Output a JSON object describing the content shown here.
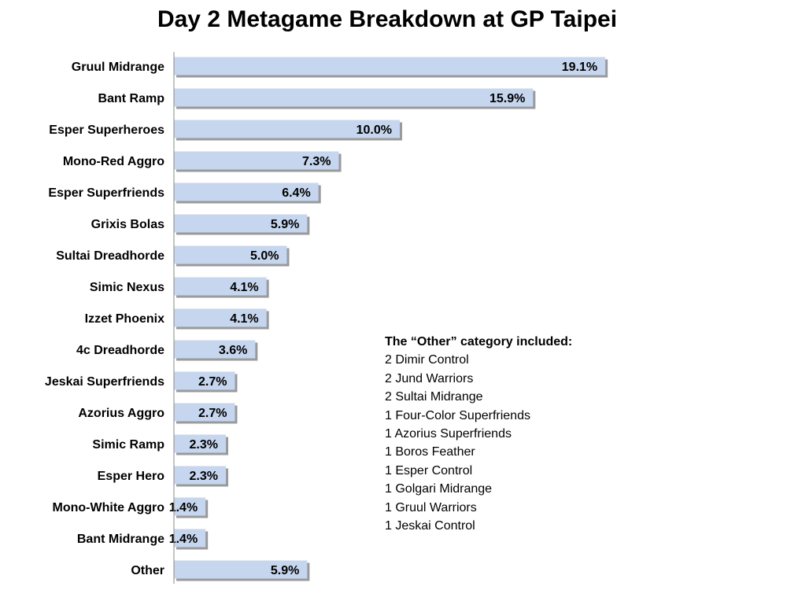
{
  "chart_data": {
    "type": "bar",
    "orientation": "horizontal",
    "title": "Day 2 Metagame Breakdown at GP Taipei",
    "xlabel": "",
    "ylabel": "",
    "xlim": [
      0,
      20
    ],
    "grid": false,
    "legend": "none",
    "categories": [
      "Gruul Midrange",
      "Bant Ramp",
      "Esper Superheroes",
      "Mono-Red Aggro",
      "Esper Superfriends",
      "Grixis Bolas",
      "Sultai Dreadhorde",
      "Simic Nexus",
      "Izzet Phoenix",
      "4c Dreadhorde",
      "Jeskai Superfriends",
      "Azorius Aggro",
      "Simic Ramp",
      "Esper Hero",
      "Mono-White Aggro",
      "Bant Midrange",
      "Other"
    ],
    "values": [
      19.1,
      15.9,
      10.0,
      7.3,
      6.4,
      5.9,
      5.0,
      4.1,
      4.1,
      3.6,
      2.7,
      2.7,
      2.3,
      2.3,
      1.4,
      1.4,
      5.9
    ],
    "data_labels": [
      "19.1%",
      "15.9%",
      "10.0%",
      "7.3%",
      "6.4%",
      "5.9%",
      "5.0%",
      "4.1%",
      "4.1%",
      "3.6%",
      "2.7%",
      "2.7%",
      "2.3%",
      "2.3%",
      "1.4%",
      "1.4%",
      "5.9%"
    ],
    "colors": {
      "bar_fill": "#c6d6ee",
      "bar_shadow": "#9a9a9a",
      "axis": "#888888"
    }
  },
  "notes": {
    "heading": "The “Other” category included:",
    "items": [
      "2 Dimir Control",
      "2 Jund Warriors",
      "2 Sultai Midrange",
      "1 Four-Color Superfriends",
      "1 Azorius Superfriends",
      "1 Boros Feather",
      "1 Esper Control",
      "1 Golgari Midrange",
      "1 Gruul Warriors",
      "1 Jeskai Control"
    ]
  }
}
